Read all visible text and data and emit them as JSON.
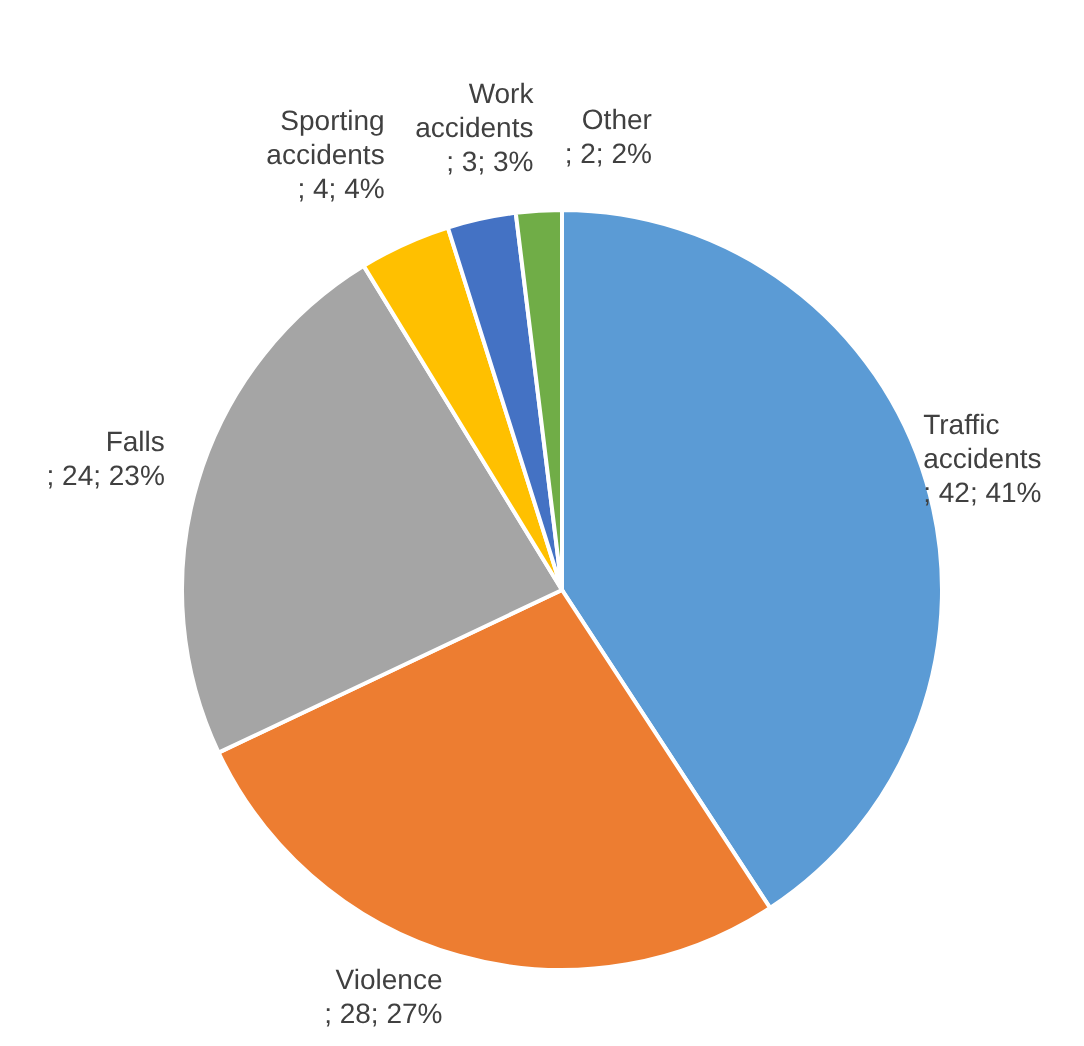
{
  "chart_data": {
    "type": "pie",
    "categories": [
      "Traffic accidents",
      "Violence",
      "Falls",
      "Sporting accidents",
      "Work accidents",
      "Other"
    ],
    "values": [
      42,
      28,
      24,
      4,
      3,
      2
    ],
    "value_labels": [
      "; 42; 41%",
      "; 28; 27%",
      "; 24; 23%",
      "; 4; 4%",
      "; 3; 3%",
      "; 2; 2%"
    ],
    "colors": [
      "#5b9bd5",
      "#ed7d31",
      "#a5a5a5",
      "#ffc000",
      "#4472c4",
      "#70ad47"
    ],
    "legend": false
  }
}
